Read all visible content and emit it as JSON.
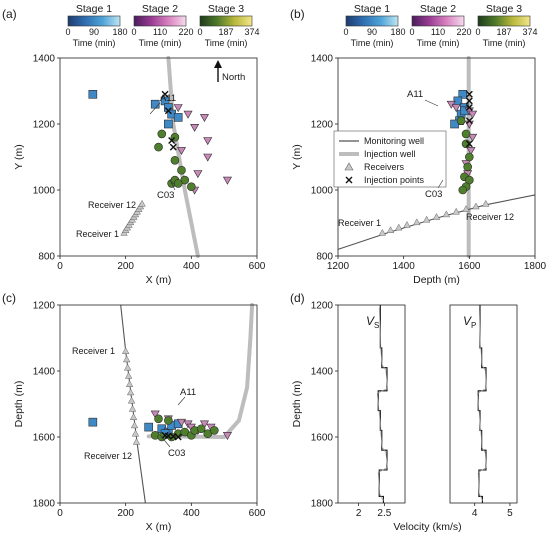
{
  "panel_labels": [
    "(a)",
    "(b)",
    "(c)",
    "(d)"
  ],
  "colorbars": [
    {
      "title": "Stage 1",
      "ticks": [
        "0",
        "90",
        "180"
      ],
      "unit": "Time (min)",
      "colors": [
        "#1f3c6e",
        "#2f6fb1",
        "#4fa3d8",
        "#bfe6f2"
      ]
    },
    {
      "title": "Stage 2",
      "ticks": [
        "0",
        "110",
        "220"
      ],
      "unit": "Time (min)",
      "colors": [
        "#4a1d5c",
        "#9a3c93",
        "#d982c0",
        "#f6dcee"
      ]
    },
    {
      "title": "Stage 3",
      "ticks": [
        "0",
        "187",
        "374"
      ],
      "unit": "Time (min)",
      "colors": [
        "#1e3b1c",
        "#4e7a2a",
        "#b9b83c",
        "#f3e68a"
      ]
    }
  ],
  "colors": {
    "stage1": "#3f8ac6",
    "stage2": "#c889b8",
    "stage3": "#4f7e2c",
    "receiver": "#c8c8c8",
    "monitoring_well": "#555555",
    "injection_well": "#bdbdbd"
  },
  "annotations": {
    "a11": "A11",
    "c03": "C03",
    "receiver1": "Receiver 1",
    "receiver12": "Receiver 12",
    "north": "North",
    "vs": "V",
    "vs_sub": "S",
    "vp": "V",
    "vp_sub": "P"
  },
  "legend": {
    "position": "center-left of panel (b)",
    "items": [
      "Monitoring well",
      "Injection well",
      "Receivers",
      "Injection points"
    ]
  },
  "chart_data": [
    {
      "panel": "(a)",
      "type": "scatter",
      "xlabel": "X (m)",
      "ylabel": "Y (m)",
      "xlim": [
        0,
        600
      ],
      "ylim": [
        800,
        1400
      ],
      "xticks": [
        "0",
        "200",
        "400",
        "600"
      ],
      "yticks": [
        "800",
        "1000",
        "1200",
        "1400"
      ],
      "series": [
        {
          "name": "Stage 1",
          "marker": "square",
          "points": [
            [
              100,
              1290
            ],
            [
              290,
              1260
            ],
            [
              320,
              1270
            ],
            [
              330,
              1250
            ],
            [
              340,
              1230
            ],
            [
              360,
              1220
            ],
            [
              330,
              1200
            ]
          ]
        },
        {
          "name": "Stage 2",
          "marker": "triangle-down",
          "points": [
            [
              360,
              1250
            ],
            [
              390,
              1230
            ],
            [
              410,
              1190
            ],
            [
              440,
              1220
            ],
            [
              450,
              1150
            ],
            [
              370,
              1120
            ],
            [
              450,
              1100
            ],
            [
              420,
              1050
            ],
            [
              510,
              1030
            ],
            [
              410,
              1000
            ]
          ]
        },
        {
          "name": "Stage 3",
          "marker": "circle",
          "points": [
            [
              310,
              1170
            ],
            [
              300,
              1130
            ],
            [
              350,
              1160
            ],
            [
              350,
              1090
            ],
            [
              370,
              1060
            ],
            [
              380,
              1030
            ],
            [
              340,
              1020
            ],
            [
              350,
              1030
            ],
            [
              360,
              1020
            ],
            [
              400,
              1010
            ]
          ]
        },
        {
          "name": "Injection points",
          "marker": "x",
          "points": [
            [
              320,
              1290
            ],
            [
              330,
              1240
            ],
            [
              340,
              1150
            ],
            [
              345,
              1130
            ]
          ]
        }
      ],
      "receivers": [
        [
          195,
          870
        ],
        [
          200,
          878
        ],
        [
          205,
          886
        ],
        [
          210,
          894
        ],
        [
          215,
          902
        ],
        [
          220,
          910
        ],
        [
          225,
          918
        ],
        [
          230,
          926
        ],
        [
          235,
          934
        ],
        [
          240,
          942
        ],
        [
          245,
          950
        ],
        [
          250,
          958
        ]
      ],
      "injection_well": [
        [
          330,
          1400
        ],
        [
          345,
          1200
        ],
        [
          380,
          1000
        ],
        [
          420,
          800
        ]
      ],
      "monitoring_well": [
        [
          195,
          865
        ],
        [
          252,
          962
        ]
      ]
    },
    {
      "panel": "(b)",
      "type": "scatter",
      "xlabel": "Depth (m)",
      "ylabel": "Y (m)",
      "xlim": [
        1200,
        1800
      ],
      "ylim": [
        800,
        1400
      ],
      "xticks": [
        "1200",
        "1400",
        "1600",
        "1800"
      ],
      "yticks": [
        "800",
        "1000",
        "1200",
        "1400"
      ],
      "series": [
        {
          "name": "Stage 1",
          "marker": "square",
          "points": [
            [
              1580,
              1290
            ],
            [
              1565,
              1270
            ],
            [
              1585,
              1250
            ],
            [
              1575,
              1230
            ],
            [
              1570,
              1210
            ],
            [
              1585,
              1240
            ],
            [
              1555,
              1200
            ]
          ]
        },
        {
          "name": "Stage 2",
          "marker": "triangle-down",
          "points": [
            [
              1545,
              1260
            ],
            [
              1560,
              1250
            ],
            [
              1600,
              1240
            ],
            [
              1610,
              1230
            ],
            [
              1600,
              1200
            ],
            [
              1610,
              1160
            ],
            [
              1605,
              1120
            ],
            [
              1590,
              1080
            ],
            [
              1595,
              1050
            ]
          ]
        },
        {
          "name": "Stage 3",
          "marker": "circle",
          "points": [
            [
              1575,
              1210
            ],
            [
              1590,
              1170
            ],
            [
              1590,
              1140
            ],
            [
              1600,
              1100
            ],
            [
              1595,
              1070
            ],
            [
              1585,
              1040
            ],
            [
              1600,
              1030
            ],
            [
              1590,
              1010
            ],
            [
              1580,
              1000
            ]
          ]
        },
        {
          "name": "Injection points",
          "marker": "x",
          "points": [
            [
              1600,
              1290
            ],
            [
              1600,
              1270
            ],
            [
              1600,
              1250
            ],
            [
              1600,
              1210
            ],
            [
              1600,
              1140
            ]
          ]
        }
      ],
      "receivers": [
        [
          1335,
          870
        ],
        [
          1360,
          878
        ],
        [
          1385,
          886
        ],
        [
          1410,
          894
        ],
        [
          1440,
          902
        ],
        [
          1470,
          910
        ],
        [
          1500,
          918
        ],
        [
          1530,
          926
        ],
        [
          1560,
          934
        ],
        [
          1590,
          942
        ],
        [
          1620,
          950
        ],
        [
          1650,
          958
        ]
      ],
      "monitoring_well": [
        [
          1200,
          820
        ],
        [
          1350,
          870
        ],
        [
          1500,
          915
        ],
        [
          1650,
          955
        ],
        [
          1800,
          985
        ]
      ],
      "injection_well": [
        [
          1598,
          1400
        ],
        [
          1598,
          800
        ]
      ]
    },
    {
      "panel": "(c)",
      "type": "scatter",
      "xlabel": "X (m)",
      "ylabel": "Depth (m)",
      "xlim": [
        0,
        600
      ],
      "ylim": [
        1200,
        1800
      ],
      "y_inverted": true,
      "xticks": [
        "0",
        "200",
        "400",
        "600"
      ],
      "yticks": [
        "1200",
        "1400",
        "1600",
        "1800"
      ],
      "series": [
        {
          "name": "Stage 1",
          "marker": "square",
          "points": [
            [
              100,
              1555
            ],
            [
              270,
              1570
            ],
            [
              310,
              1575
            ],
            [
              330,
              1585
            ],
            [
              340,
              1565
            ],
            [
              360,
              1560
            ],
            [
              320,
              1590
            ]
          ]
        },
        {
          "name": "Stage 2",
          "marker": "triangle-down",
          "points": [
            [
              290,
              1530
            ],
            [
              330,
              1545
            ],
            [
              370,
              1555
            ],
            [
              390,
              1560
            ],
            [
              420,
              1580
            ],
            [
              440,
              1560
            ],
            [
              460,
              1570
            ],
            [
              510,
              1595
            ],
            [
              400,
              1570
            ]
          ]
        },
        {
          "name": "Stage 3",
          "marker": "circle",
          "points": [
            [
              290,
              1595
            ],
            [
              310,
              1600
            ],
            [
              340,
              1600
            ],
            [
              360,
              1590
            ],
            [
              380,
              1585
            ],
            [
              400,
              1595
            ],
            [
              410,
              1580
            ],
            [
              430,
              1575
            ],
            [
              450,
              1590
            ],
            [
              470,
              1580
            ],
            [
              300,
              1545
            ],
            [
              330,
              1550
            ]
          ]
        },
        {
          "name": "Injection points",
          "marker": "x",
          "points": [
            [
              320,
              1595
            ],
            [
              330,
              1597
            ],
            [
              345,
              1598
            ],
            [
              360,
              1600
            ]
          ]
        }
      ],
      "receivers": [
        [
          200,
          1340
        ],
        [
          203,
          1365
        ],
        [
          206,
          1390
        ],
        [
          209,
          1415
        ],
        [
          212,
          1440
        ],
        [
          215,
          1465
        ],
        [
          218,
          1490
        ],
        [
          221,
          1515
        ],
        [
          224,
          1540
        ],
        [
          227,
          1565
        ],
        [
          230,
          1590
        ],
        [
          233,
          1615
        ]
      ],
      "monitoring_well": [
        [
          185,
          1200
        ],
        [
          200,
          1340
        ],
        [
          235,
          1620
        ],
        [
          260,
          1800
        ]
      ],
      "injection_well": [
        [
          270,
          1598
        ],
        [
          500,
          1600
        ],
        [
          545,
          1550
        ],
        [
          570,
          1450
        ],
        [
          580,
          1300
        ],
        [
          585,
          1200
        ]
      ]
    },
    {
      "panel": "(d)",
      "type": "line",
      "xlabel": "Velocity (km/s)",
      "ylabel": "Depth (m)",
      "ylim": [
        1200,
        1800
      ],
      "y_inverted": true,
      "yticks": [
        "1200",
        "1400",
        "1600",
        "1800"
      ],
      "subplots": [
        {
          "name": "Vs",
          "xlim": [
            1.6,
            2.9
          ],
          "xticks": [
            "2",
            "2.5"
          ],
          "tick_values": [
            2,
            2.5
          ],
          "layers": [
            [
              1200,
              2.42
            ],
            [
              1330,
              2.45
            ],
            [
              1390,
              2.55
            ],
            [
              1460,
              2.38
            ],
            [
              1520,
              2.42
            ],
            [
              1580,
              2.45
            ],
            [
              1640,
              2.55
            ],
            [
              1700,
              2.4
            ],
            [
              1780,
              2.48
            ],
            [
              1800,
              2.48
            ]
          ]
        },
        {
          "name": "Vp",
          "xlim": [
            3.3,
            5.2
          ],
          "xticks": [
            "4",
            "5"
          ],
          "tick_values": [
            4,
            5
          ],
          "layers": [
            [
              1200,
              4.15
            ],
            [
              1330,
              4.2
            ],
            [
              1390,
              4.32
            ],
            [
              1460,
              4.1
            ],
            [
              1520,
              4.15
            ],
            [
              1580,
              4.2
            ],
            [
              1640,
              4.32
            ],
            [
              1700,
              4.12
            ],
            [
              1780,
              4.22
            ],
            [
              1800,
              4.22
            ]
          ]
        }
      ]
    }
  ]
}
